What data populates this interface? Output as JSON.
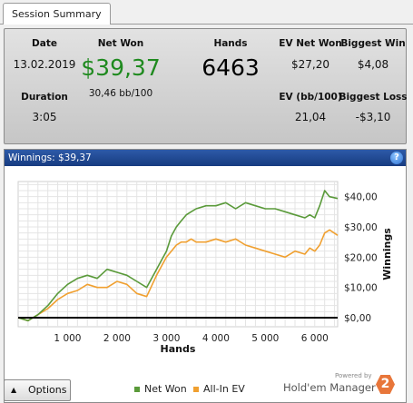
{
  "tab": {
    "label": "Session Summary"
  },
  "summary": {
    "date_label": "Date",
    "date_value": "13.02.2019",
    "duration_label": "Duration",
    "duration_value": "3:05",
    "netwon_label": "Net Won",
    "netwon_value": "$39,37",
    "netwon_bb": "30,46 bb/100",
    "hands_label": "Hands",
    "hands_value": "6463",
    "evnet_label": "EV Net Won",
    "evnet_value": "$27,20",
    "evbb_label": "EV (bb/100)",
    "evbb_value": "21,04",
    "bigwin_label": "Biggest Win",
    "bigwin_value": "$4,08",
    "bigloss_label": "Biggest Loss",
    "bigloss_value": "-$3,10"
  },
  "graph": {
    "title": "Winnings: $39,37",
    "help_icon": "question-icon"
  },
  "chart_data": {
    "type": "line",
    "xlabel": "Hands",
    "ylabel": "Winnings",
    "xlim": [
      0,
      6463
    ],
    "ylim": [
      -3,
      45
    ],
    "x_ticks": [
      1000,
      2000,
      3000,
      4000,
      5000,
      6000
    ],
    "x_tick_labels": [
      "1 000",
      "2 000",
      "3 000",
      "4 000",
      "5 000",
      "6 000"
    ],
    "y_ticks": [
      0,
      10,
      20,
      30,
      40
    ],
    "y_tick_labels": [
      "$0,00",
      "$10,00",
      "$20,00",
      "$30,00",
      "$40,00"
    ],
    "grid": true,
    "legend": "bottom",
    "series": [
      {
        "name": "Net Won",
        "color": "#5a9a3a",
        "x": [
          0,
          200,
          400,
          600,
          800,
          1000,
          1200,
          1400,
          1600,
          1800,
          2000,
          2200,
          2400,
          2600,
          2800,
          2900,
          3000,
          3100,
          3200,
          3300,
          3400,
          3500,
          3600,
          3800,
          4000,
          4200,
          4400,
          4600,
          4800,
          5000,
          5200,
          5400,
          5600,
          5800,
          5900,
          6000,
          6100,
          6200,
          6300,
          6463
        ],
        "y": [
          0,
          -1,
          1,
          4,
          8,
          11,
          13,
          14,
          13,
          16,
          15,
          14,
          12,
          10,
          16,
          19,
          22,
          27,
          30,
          32,
          34,
          35,
          36,
          37,
          37,
          38,
          36,
          38,
          37,
          36,
          36,
          35,
          34,
          33,
          34,
          33,
          37,
          42,
          40,
          39.4
        ]
      },
      {
        "name": "All-In EV",
        "color": "#f0a030",
        "x": [
          0,
          200,
          400,
          600,
          800,
          1000,
          1200,
          1400,
          1600,
          1800,
          2000,
          2200,
          2400,
          2600,
          2800,
          2900,
          3000,
          3100,
          3200,
          3300,
          3400,
          3500,
          3600,
          3800,
          4000,
          4200,
          4400,
          4600,
          4800,
          5000,
          5200,
          5400,
          5600,
          5800,
          5900,
          6000,
          6100,
          6200,
          6300,
          6463
        ],
        "y": [
          0,
          -1,
          1,
          3,
          6,
          8,
          9,
          11,
          10,
          10,
          12,
          11,
          8,
          7,
          14,
          17,
          20,
          22,
          24,
          25,
          25,
          26,
          25,
          25,
          26,
          25,
          26,
          24,
          23,
          22,
          21,
          20,
          22,
          21,
          23,
          22,
          24,
          28,
          29,
          27.2
        ]
      }
    ]
  },
  "footer": {
    "options_label": "Options",
    "options_icon": "triangle-up-icon",
    "legend_net": "Net Won",
    "legend_ev": "All-In EV",
    "powered_by": "Powered by",
    "brand": "Hold'em Manager",
    "brand_badge": "2"
  }
}
